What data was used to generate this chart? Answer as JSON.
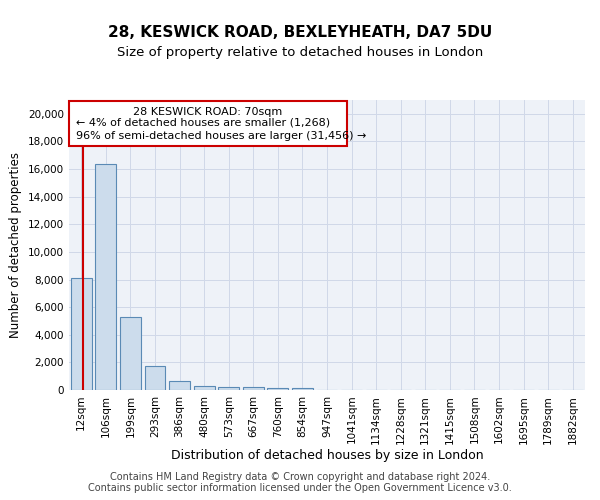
{
  "title1": "28, KESWICK ROAD, BEXLEYHEATH, DA7 5DU",
  "title2": "Size of property relative to detached houses in London",
  "xlabel": "Distribution of detached houses by size in London",
  "ylabel": "Number of detached properties",
  "bin_labels": [
    "12sqm",
    "106sqm",
    "199sqm",
    "293sqm",
    "386sqm",
    "480sqm",
    "573sqm",
    "667sqm",
    "760sqm",
    "854sqm",
    "947sqm",
    "1041sqm",
    "1134sqm",
    "1228sqm",
    "1321sqm",
    "1415sqm",
    "1508sqm",
    "1602sqm",
    "1695sqm",
    "1789sqm",
    "1882sqm"
  ],
  "bar_values": [
    8100,
    16400,
    5300,
    1750,
    680,
    310,
    220,
    190,
    170,
    130,
    0,
    0,
    0,
    0,
    0,
    0,
    0,
    0,
    0,
    0,
    0
  ],
  "bar_color": "#ccdcec",
  "bar_edge_color": "#5a8ab5",
  "vline_color": "#cc0000",
  "grid_color": "#d0d8e8",
  "background_color": "#eef2f8",
  "ylim": [
    0,
    21000
  ],
  "yticks": [
    0,
    2000,
    4000,
    6000,
    8000,
    10000,
    12000,
    14000,
    16000,
    18000,
    20000
  ],
  "vline_x": 0.08,
  "ann_line1": "28 KESWICK ROAD: 70sqm",
  "ann_line2": "← 4% of detached houses are smaller (1,268)",
  "ann_line3": "96% of semi-detached houses are larger (31,456) →",
  "footer_text": "Contains HM Land Registry data © Crown copyright and database right 2024.\nContains public sector information licensed under the Open Government Licence v3.0.",
  "title1_fontsize": 11,
  "title2_fontsize": 9.5,
  "xlabel_fontsize": 9,
  "ylabel_fontsize": 8.5,
  "tick_fontsize": 7.5,
  "annotation_fontsize": 8,
  "footer_fontsize": 7
}
